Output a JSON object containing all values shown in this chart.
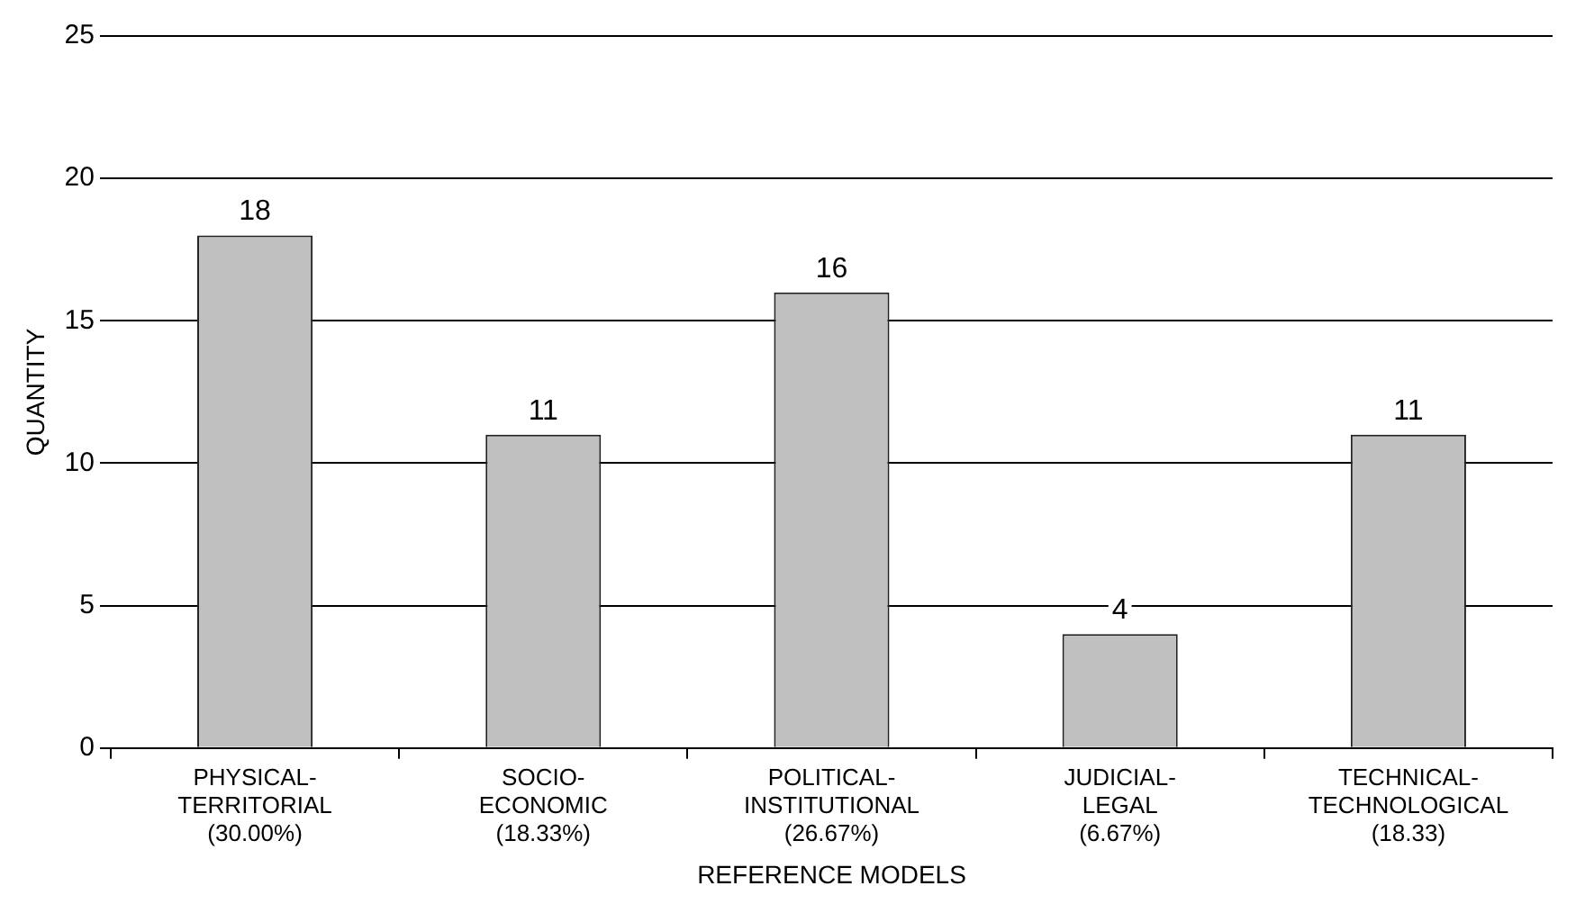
{
  "chart_data": {
    "type": "bar",
    "xlabel": "REFERENCE MODELS",
    "ylabel": "QUANTITY",
    "categories": [
      "PHYSICAL-\nTERRITORIAL\n(30.00%)",
      "SOCIO-\nECONOMIC\n(18.33%)",
      "POLITICAL-\nINSTITUTIONAL\n(26.67%)",
      "JUDICIAL-\nLEGAL\n(6.67%)",
      "TECHNICAL-\nTECHNOLOGICAL\n(18.33)"
    ],
    "values": [
      18,
      11,
      16,
      4,
      11
    ],
    "color": "#c0c0c0",
    "ylim": [
      0,
      25
    ],
    "yticks": [
      0,
      5,
      10,
      15,
      20,
      25
    ],
    "grid": "y",
    "data_labels": true,
    "legend": false
  }
}
